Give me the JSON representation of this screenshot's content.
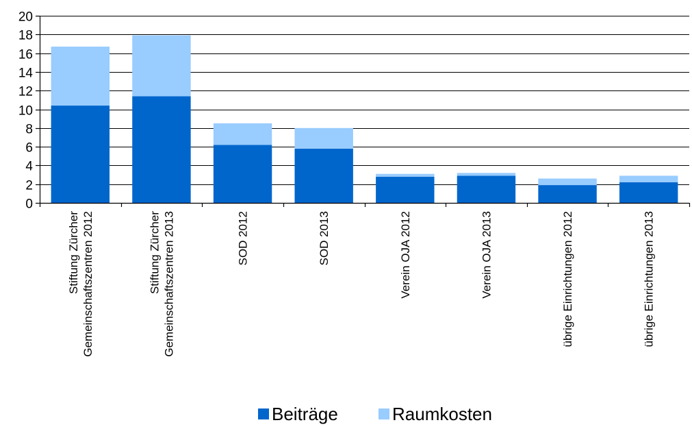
{
  "chart_data": {
    "type": "bar",
    "stacked": true,
    "categories": [
      [
        "Stiftung Zürcher",
        "Gemeinschaftszentren 2012"
      ],
      [
        "Stiftung Zürcher",
        "Gemeinschaftszentren 2013"
      ],
      [
        "SOD 2012"
      ],
      [
        "SOD 2013"
      ],
      [
        "Verein OJA 2012"
      ],
      [
        "Verein OJA 2013"
      ],
      [
        "übrige Einrichtungen 2012"
      ],
      [
        "übrige Einrichtungen 2013"
      ]
    ],
    "series": [
      {
        "name": "Beiträge",
        "color": "#0066CC",
        "values": [
          10.4,
          11.4,
          6.2,
          5.8,
          2.8,
          2.9,
          1.9,
          2.2
        ]
      },
      {
        "name": "Raumkosten",
        "color": "#99CCFF",
        "values": [
          6.3,
          6.5,
          2.3,
          2.2,
          0.3,
          0.3,
          0.7,
          0.7
        ]
      }
    ],
    "ylim": [
      0,
      20
    ],
    "yticks": [
      "0",
      "2",
      "4",
      "6",
      "8",
      "10",
      "12",
      "14",
      "16",
      "18",
      "20"
    ],
    "grid": true,
    "legend_position": "bottom",
    "title": "",
    "xlabel": "",
    "ylabel": ""
  }
}
